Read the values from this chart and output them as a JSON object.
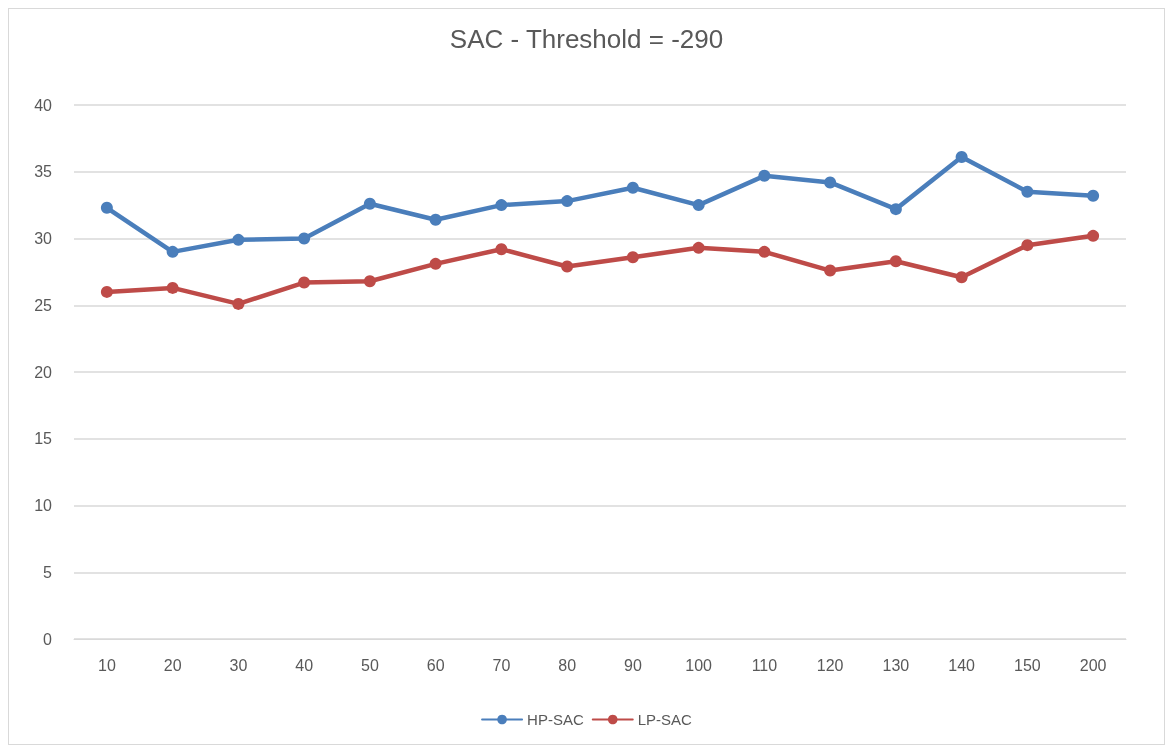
{
  "chart_data": {
    "type": "line",
    "title": "SAC - Threshold = -290",
    "categories": [
      "10",
      "20",
      "30",
      "40",
      "50",
      "60",
      "70",
      "80",
      "90",
      "100",
      "110",
      "120",
      "130",
      "140",
      "150",
      "200"
    ],
    "series": [
      {
        "name": "HP-SAC",
        "color": "#4a7ebb",
        "values": [
          32.3,
          29.0,
          29.9,
          30.0,
          32.6,
          31.4,
          32.5,
          32.8,
          33.8,
          32.5,
          34.7,
          34.2,
          32.2,
          36.1,
          33.5,
          33.2
        ]
      },
      {
        "name": "LP-SAC",
        "color": "#be4b48",
        "values": [
          26.0,
          26.3,
          25.1,
          26.7,
          26.8,
          28.1,
          29.2,
          27.9,
          28.6,
          29.3,
          29.0,
          27.6,
          28.3,
          27.1,
          29.5,
          30.2
        ]
      }
    ],
    "ylim": [
      0,
      40
    ],
    "yticks": [
      0,
      5,
      10,
      15,
      20,
      25,
      30,
      35,
      40
    ],
    "grid": "y",
    "legend": "bottom",
    "marker": "circle",
    "line_style": "solid"
  }
}
